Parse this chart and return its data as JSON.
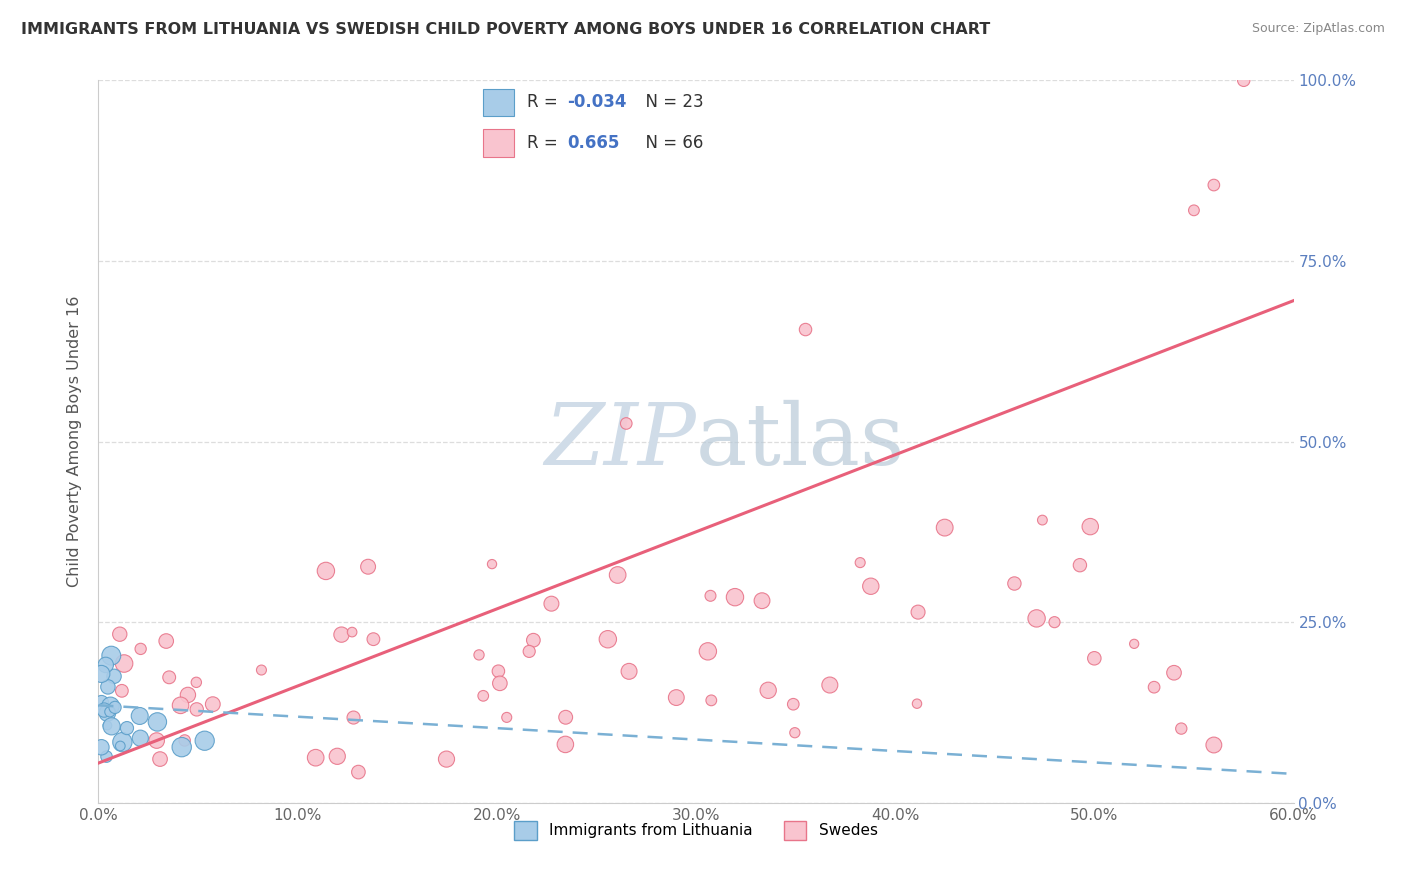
{
  "title": "IMMIGRANTS FROM LITHUANIA VS SWEDISH CHILD POVERTY AMONG BOYS UNDER 16 CORRELATION CHART",
  "source": "Source: ZipAtlas.com",
  "ylabel": "Child Poverty Among Boys Under 16",
  "xlim": [
    0.0,
    0.6
  ],
  "ylim": [
    0.0,
    1.0
  ],
  "xticklabels": [
    "0.0%",
    "10.0%",
    "20.0%",
    "30.0%",
    "40.0%",
    "50.0%",
    "60.0%"
  ],
  "yticklabels": [
    "0.0%",
    "25.0%",
    "50.0%",
    "75.0%",
    "100.0%"
  ],
  "legend_label1": "Immigrants from Lithuania",
  "legend_label2": "Swedes",
  "R1": "-0.034",
  "N1": "23",
  "R2": "0.665",
  "N2": "66",
  "color1": "#a8cce8",
  "color2": "#f9c4cf",
  "color1_edge": "#5b9ec9",
  "color2_edge": "#e8758a",
  "line1_color": "#7ab0d4",
  "line2_color": "#e8607a",
  "background_color": "#ffffff",
  "grid_color": "#dddddd",
  "ytick_color": "#5b7fbf",
  "title_color": "#333333",
  "source_color": "#888888",
  "ylabel_color": "#555555",
  "watermark_color": "#d0dce8"
}
